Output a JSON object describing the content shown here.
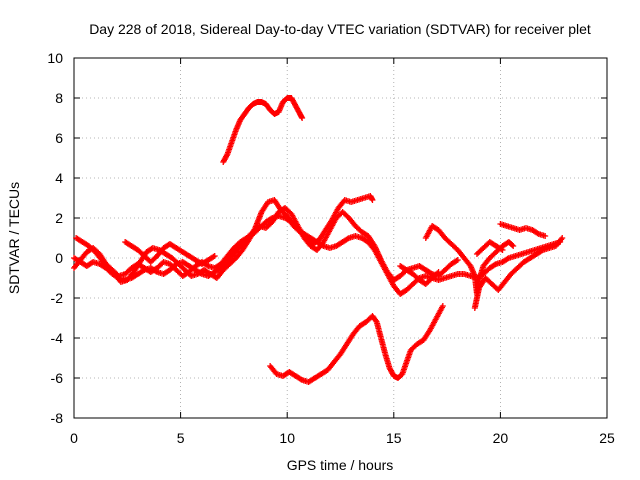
{
  "chart_data": {
    "type": "scatter",
    "title": "Day 228 of 2018, Sidereal Day-to-day VTEC variation (SDTVAR) for receiver plet",
    "xlabel": "GPS time / hours",
    "ylabel": "SDTVAR / TECUs",
    "xlim": [
      0,
      25
    ],
    "ylim": [
      -8,
      10
    ],
    "x_ticks": [
      0,
      5,
      10,
      15,
      20,
      25
    ],
    "y_ticks": [
      -8,
      -6,
      -4,
      -2,
      0,
      2,
      4,
      6,
      8,
      10
    ],
    "grid": true,
    "marker": "plus",
    "color": "#ff0000",
    "series": [
      {
        "values": [
          [
            7.0,
            4.8
          ],
          [
            7.2,
            5.2
          ],
          [
            7.4,
            5.8
          ],
          [
            7.6,
            6.4
          ],
          [
            7.8,
            6.9
          ],
          [
            8.0,
            7.2
          ],
          [
            8.2,
            7.5
          ],
          [
            8.4,
            7.7
          ],
          [
            8.6,
            7.8
          ],
          [
            8.8,
            7.8
          ],
          [
            9.0,
            7.7
          ],
          [
            9.2,
            7.4
          ],
          [
            9.4,
            7.2
          ],
          [
            9.6,
            7.3
          ],
          [
            9.8,
            7.8
          ],
          [
            10.0,
            8.0
          ],
          [
            10.2,
            8.0
          ],
          [
            10.4,
            7.6
          ],
          [
            10.6,
            7.2
          ],
          [
            10.7,
            7.0
          ]
        ]
      },
      {
        "values": [
          [
            9.2,
            -5.4
          ],
          [
            9.5,
            -5.8
          ],
          [
            9.8,
            -5.9
          ],
          [
            10.1,
            -5.7
          ],
          [
            10.4,
            -5.9
          ],
          [
            10.7,
            -6.1
          ],
          [
            11.0,
            -6.2
          ],
          [
            11.3,
            -6.0
          ],
          [
            11.6,
            -5.8
          ],
          [
            11.9,
            -5.6
          ],
          [
            12.2,
            -5.2
          ],
          [
            12.5,
            -4.8
          ],
          [
            12.8,
            -4.3
          ],
          [
            13.1,
            -3.8
          ],
          [
            13.4,
            -3.4
          ],
          [
            13.7,
            -3.2
          ],
          [
            14.0,
            -2.9
          ],
          [
            14.2,
            -3.2
          ],
          [
            14.4,
            -4.0
          ],
          [
            14.6,
            -4.8
          ],
          [
            14.8,
            -5.5
          ],
          [
            15.0,
            -5.9
          ],
          [
            15.2,
            -6.0
          ],
          [
            15.4,
            -5.8
          ],
          [
            15.6,
            -5.2
          ],
          [
            15.8,
            -4.6
          ],
          [
            16.1,
            -4.3
          ],
          [
            16.4,
            -4.1
          ],
          [
            16.7,
            -3.6
          ],
          [
            17.0,
            -3.0
          ],
          [
            17.3,
            -2.4
          ]
        ]
      },
      {
        "values": [
          [
            0.0,
            0.0
          ],
          [
            0.3,
            -0.2
          ],
          [
            0.6,
            -0.4
          ],
          [
            0.9,
            -0.2
          ],
          [
            1.2,
            -0.3
          ],
          [
            1.5,
            -0.5
          ],
          [
            1.8,
            -0.8
          ],
          [
            2.1,
            -1.0
          ],
          [
            2.4,
            -1.1
          ],
          [
            2.7,
            -1.0
          ],
          [
            3.0,
            -0.8
          ],
          [
            3.3,
            -0.6
          ],
          [
            3.6,
            -0.5
          ],
          [
            3.9,
            -0.7
          ],
          [
            4.2,
            -0.8
          ],
          [
            4.5,
            -0.6
          ],
          [
            4.8,
            -0.3
          ],
          [
            5.1,
            -0.2
          ],
          [
            5.4,
            -0.4
          ],
          [
            5.7,
            -0.6
          ],
          [
            6.0,
            -0.8
          ],
          [
            6.3,
            -0.9
          ],
          [
            6.6,
            -0.7
          ],
          [
            6.9,
            -0.5
          ],
          [
            7.2,
            -0.2
          ],
          [
            7.5,
            0.2
          ],
          [
            7.8,
            0.6
          ],
          [
            8.1,
            0.9
          ],
          [
            8.4,
            1.2
          ],
          [
            8.7,
            1.5
          ],
          [
            9.0,
            1.8
          ],
          [
            9.3,
            2.0
          ],
          [
            9.6,
            2.1
          ],
          [
            9.9,
            2.0
          ],
          [
            10.2,
            1.8
          ],
          [
            10.5,
            1.5
          ],
          [
            10.8,
            1.2
          ],
          [
            11.1,
            1.0
          ],
          [
            11.4,
            0.8
          ],
          [
            11.7,
            0.6
          ],
          [
            12.0,
            0.5
          ],
          [
            12.3,
            0.6
          ],
          [
            12.6,
            0.8
          ],
          [
            12.9,
            1.0
          ],
          [
            13.2,
            1.1
          ],
          [
            13.5,
            1.0
          ],
          [
            13.8,
            0.8
          ],
          [
            14.1,
            0.4
          ],
          [
            14.4,
            -0.2
          ],
          [
            14.7,
            -0.8
          ],
          [
            15.0,
            -1.4
          ],
          [
            15.3,
            -1.8
          ],
          [
            15.6,
            -1.6
          ],
          [
            15.9,
            -1.3
          ],
          [
            16.2,
            -1.0
          ],
          [
            16.5,
            -0.9
          ],
          [
            16.8,
            -1.0
          ],
          [
            17.1,
            -1.1
          ],
          [
            17.4,
            -1.0
          ],
          [
            17.7,
            -0.9
          ],
          [
            18.0,
            -0.8
          ],
          [
            18.3,
            -0.8
          ],
          [
            18.6,
            -0.9
          ],
          [
            18.9,
            -1.0
          ],
          [
            19.2,
            -0.8
          ],
          [
            19.5,
            -0.5
          ],
          [
            19.8,
            -0.3
          ],
          [
            20.1,
            -0.2
          ],
          [
            20.4,
            0.0
          ],
          [
            20.7,
            0.1
          ],
          [
            21.0,
            0.2
          ],
          [
            21.3,
            0.3
          ],
          [
            21.6,
            0.4
          ],
          [
            21.9,
            0.5
          ],
          [
            22.2,
            0.6
          ],
          [
            22.5,
            0.7
          ],
          [
            22.8,
            0.8
          ]
        ]
      },
      {
        "values": [
          [
            0.1,
            1.0
          ],
          [
            0.4,
            0.8
          ],
          [
            0.7,
            0.6
          ],
          [
            1.0,
            0.3
          ],
          [
            1.3,
            -0.1
          ],
          [
            1.6,
            -0.5
          ],
          [
            1.9,
            -0.8
          ],
          [
            2.2,
            -1.2
          ],
          [
            2.5,
            -1.1
          ],
          [
            2.8,
            -0.7
          ],
          [
            3.1,
            -0.2
          ],
          [
            3.4,
            0.3
          ],
          [
            3.7,
            0.5
          ],
          [
            4.0,
            0.4
          ],
          [
            4.3,
            0.2
          ],
          [
            4.6,
            0.0
          ],
          [
            4.9,
            -0.3
          ],
          [
            5.2,
            -0.6
          ],
          [
            5.5,
            -0.9
          ],
          [
            5.8,
            -0.8
          ],
          [
            6.1,
            -0.6
          ],
          [
            6.4,
            -0.8
          ],
          [
            6.7,
            -1.0
          ],
          [
            7.0,
            -0.6
          ],
          [
            7.3,
            -0.3
          ],
          [
            7.6,
            0.0
          ],
          [
            7.9,
            0.4
          ],
          [
            8.2,
            0.9
          ],
          [
            8.5,
            1.5
          ],
          [
            8.8,
            2.3
          ],
          [
            9.1,
            2.8
          ],
          [
            9.4,
            2.9
          ],
          [
            9.7,
            2.4
          ],
          [
            10.0,
            2.1
          ],
          [
            10.3,
            1.6
          ],
          [
            10.6,
            1.3
          ],
          [
            10.9,
            1.0
          ],
          [
            11.2,
            0.7
          ],
          [
            11.5,
            0.9
          ],
          [
            11.8,
            1.4
          ],
          [
            12.1,
            1.9
          ],
          [
            12.4,
            2.5
          ],
          [
            12.7,
            2.9
          ],
          [
            13.0,
            2.8
          ],
          [
            13.3,
            2.9
          ],
          [
            13.6,
            3.0
          ],
          [
            13.9,
            3.1
          ],
          [
            14.0,
            2.9
          ]
        ]
      },
      {
        "values": [
          [
            0.0,
            -0.5
          ],
          [
            0.3,
            -0.1
          ],
          [
            0.6,
            0.3
          ],
          [
            0.9,
            0.5
          ],
          [
            1.2,
            0.2
          ],
          [
            1.5,
            -0.3
          ],
          [
            1.8,
            -0.6
          ],
          [
            2.1,
            -0.9
          ],
          [
            2.4,
            -0.8
          ],
          [
            2.7,
            -0.5
          ],
          [
            3.0,
            -0.3
          ],
          [
            3.3,
            -0.5
          ],
          [
            3.6,
            -0.7
          ],
          [
            3.9,
            -0.5
          ],
          [
            4.2,
            -0.2
          ],
          [
            4.5,
            -0.3
          ],
          [
            4.8,
            -0.6
          ],
          [
            5.1,
            -0.9
          ],
          [
            5.4,
            -0.7
          ],
          [
            5.7,
            -0.4
          ],
          [
            6.0,
            -0.2
          ],
          [
            6.3,
            -0.4
          ],
          [
            6.6,
            -0.5
          ],
          [
            6.9,
            -0.3
          ],
          [
            7.2,
            0.1
          ],
          [
            7.5,
            0.5
          ],
          [
            7.8,
            0.8
          ],
          [
            8.1,
            1.0
          ],
          [
            8.4,
            1.3
          ],
          [
            8.7,
            1.6
          ],
          [
            9.0,
            1.5
          ],
          [
            9.3,
            1.8
          ],
          [
            9.6,
            2.3
          ],
          [
            9.9,
            2.5
          ],
          [
            10.2,
            2.2
          ],
          [
            10.5,
            1.6
          ],
          [
            10.8,
            1.0
          ],
          [
            11.1,
            0.6
          ],
          [
            11.4,
            0.4
          ],
          [
            11.7,
            0.8
          ],
          [
            12.0,
            1.4
          ],
          [
            12.3,
            2.0
          ],
          [
            12.6,
            2.3
          ],
          [
            12.9,
            2.0
          ],
          [
            13.2,
            1.6
          ],
          [
            13.5,
            1.3
          ],
          [
            13.8,
            1.1
          ],
          [
            14.1,
            0.6
          ],
          [
            14.4,
            -0.1
          ],
          [
            14.7,
            -0.7
          ],
          [
            15.0,
            -1.1
          ],
          [
            15.3,
            -0.9
          ],
          [
            15.6,
            -0.6
          ],
          [
            15.9,
            -0.8
          ],
          [
            16.2,
            -1.1
          ],
          [
            16.5,
            -1.3
          ],
          [
            16.8,
            -1.0
          ],
          [
            17.1,
            -0.7
          ]
        ]
      },
      {
        "values": [
          [
            2.4,
            0.8
          ],
          [
            2.7,
            0.6
          ],
          [
            3.0,
            0.4
          ],
          [
            3.3,
            0.1
          ],
          [
            3.6,
            -0.2
          ],
          [
            3.9,
            0.1
          ],
          [
            4.2,
            0.5
          ],
          [
            4.5,
            0.7
          ],
          [
            4.8,
            0.5
          ],
          [
            5.1,
            0.3
          ],
          [
            5.4,
            0.1
          ],
          [
            5.7,
            -0.1
          ],
          [
            6.0,
            -0.3
          ],
          [
            6.3,
            -0.1
          ],
          [
            6.6,
            0.1
          ]
        ]
      },
      {
        "values": [
          [
            16.5,
            1.0
          ],
          [
            16.8,
            1.6
          ],
          [
            17.1,
            1.4
          ],
          [
            17.4,
            1.0
          ],
          [
            17.7,
            0.7
          ],
          [
            18.0,
            0.4
          ],
          [
            18.3,
            0.0
          ],
          [
            18.6,
            -0.4
          ],
          [
            18.8,
            -0.9
          ],
          [
            18.9,
            -1.8
          ],
          [
            19.0,
            -1.1
          ],
          [
            19.2,
            -0.4
          ],
          [
            19.5,
            0.0
          ],
          [
            19.8,
            0.3
          ],
          [
            20.1,
            0.6
          ],
          [
            20.4,
            0.8
          ],
          [
            20.6,
            0.6
          ]
        ]
      },
      {
        "values": [
          [
            18.8,
            -2.5
          ],
          [
            19.0,
            -1.5
          ],
          [
            19.3,
            -1.0
          ],
          [
            19.6,
            -1.3
          ],
          [
            19.9,
            -1.6
          ],
          [
            20.2,
            -1.2
          ],
          [
            20.5,
            -0.8
          ],
          [
            20.8,
            -0.5
          ],
          [
            21.1,
            -0.2
          ],
          [
            21.4,
            0.0
          ],
          [
            21.7,
            0.2
          ],
          [
            22.0,
            0.4
          ],
          [
            22.3,
            0.5
          ],
          [
            22.6,
            0.6
          ],
          [
            22.9,
            1.0
          ]
        ]
      },
      {
        "values": [
          [
            20.0,
            1.7
          ],
          [
            20.3,
            1.6
          ],
          [
            20.6,
            1.5
          ],
          [
            20.9,
            1.4
          ],
          [
            21.2,
            1.5
          ],
          [
            21.5,
            1.4
          ],
          [
            21.8,
            1.2
          ],
          [
            22.1,
            1.1
          ]
        ]
      },
      {
        "values": [
          [
            15.3,
            -0.4
          ],
          [
            15.6,
            -0.6
          ],
          [
            15.9,
            -0.5
          ],
          [
            16.2,
            -0.4
          ],
          [
            16.5,
            -0.6
          ],
          [
            16.8,
            -0.8
          ],
          [
            17.1,
            -0.9
          ],
          [
            17.4,
            -0.6
          ],
          [
            17.7,
            -0.3
          ],
          [
            18.0,
            -0.1
          ]
        ]
      },
      {
        "values": [
          [
            18.9,
            0.2
          ],
          [
            19.2,
            0.5
          ],
          [
            19.5,
            0.8
          ],
          [
            19.8,
            0.6
          ],
          [
            20.1,
            0.4
          ]
        ]
      }
    ]
  }
}
